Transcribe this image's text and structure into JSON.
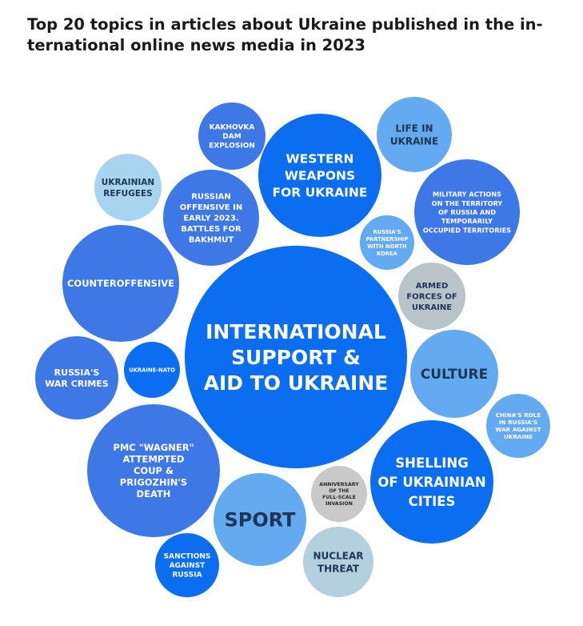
{
  "title": "Top 20 topics in articles about Ukraine published in the in­ternational online news media in 2023",
  "chart_data": {
    "type": "bubble",
    "title": "Top 20 topics in articles about Ukraine published in the international online news media in 2023",
    "colors": {
      "dark_blue": "#0b6df0",
      "medium_blue": "#3d78e6",
      "light_blue": "#64aaf0",
      "pale_blue": "#a9d4ef",
      "grey": "#b8c4c8",
      "light_grey": "#c9c9c9",
      "grey_blue": "#b4cfdd"
    },
    "bubbles": [
      {
        "label": "INTERNATIONAL SUPPORT & AID TO UKRAINE",
        "lines": [
          "INTERNATIONAL",
          "SUPPORT &",
          "AID TO UKRAINE"
        ],
        "color": "dark_blue",
        "rank": 1
      },
      {
        "label": "WESTERN WEAPONS FOR UKRAINE",
        "lines": [
          "WESTERN",
          "WEAPONS",
          "FOR UKRAINE"
        ],
        "color": "dark_blue",
        "rank": 2
      },
      {
        "label": "SHELLING OF UKRAINIAN CITIES",
        "lines": [
          "SHELLING",
          "OF UKRAINIAN",
          "CITIES"
        ],
        "color": "dark_blue",
        "rank": 3
      },
      {
        "label": "COUNTEROFFENSIVE",
        "lines": [
          "COUNTEROFFENSIVE"
        ],
        "color": "medium_blue",
        "rank": 4
      },
      {
        "label": "PMC \"WAGNER\" ATTEMPTED COUP & PRIGOZHIN'S DEATH",
        "lines": [
          "PMC \"WAGNER\"",
          "ATTEMPTED",
          "COUP &",
          "PRIGOZHIN'S",
          "DEATH"
        ],
        "color": "medium_blue",
        "rank": 5
      },
      {
        "label": "SPORT",
        "lines": [
          "SPORT"
        ],
        "color": "light_blue",
        "rank": 6
      },
      {
        "label": "MILITARY ACTIONS ON THE TERRITORY OF RUSSIA AND TEMPORARILY OCCUPIED TERRITORIES",
        "lines": [
          "MILITARY ACTIONS",
          "ON THE TERRITORY",
          "OF RUSSIA AND",
          "TEMPORARILY",
          "OCCUPIED TERRITORIES"
        ],
        "color": "medium_blue",
        "rank": 7
      },
      {
        "label": "CULTURE",
        "lines": [
          "CULTURE"
        ],
        "color": "light_blue",
        "rank": 8
      },
      {
        "label": "RUSSIAN OFFENSIVE IN EARLY 2023. BATTLES FOR BAKHMUT",
        "lines": [
          "RUSSIAN",
          "OFFENSIVE IN",
          "EARLY 2023.",
          "BATTLES FOR",
          "BAKHMUT"
        ],
        "color": "medium_blue",
        "rank": 9
      },
      {
        "label": "RUSSIA'S WAR CRIMES",
        "lines": [
          "RUSSIA'S",
          "WAR CRIMES"
        ],
        "color": "medium_blue",
        "rank": 10
      },
      {
        "label": "LIFE IN UKRAINE",
        "lines": [
          "LIFE IN",
          "UKRAINE"
        ],
        "color": "light_blue",
        "rank": 11
      },
      {
        "label": "NUCLEAR THREAT",
        "lines": [
          "NUCLEAR",
          "THREAT"
        ],
        "color": "grey_blue",
        "rank": 12
      },
      {
        "label": "UKRAINIAN REFUGEES",
        "lines": [
          "UKRAINIAN",
          "REFUGEES"
        ],
        "color": "pale_blue",
        "rank": 13
      },
      {
        "label": "KAKHOVKA DAM EXPLOSION",
        "lines": [
          "KAKHOVKA",
          "DAM",
          "EXPLOSION"
        ],
        "color": "medium_blue",
        "rank": 14
      },
      {
        "label": "ARMED FORCES OF UKRAINE",
        "lines": [
          "ARMED",
          "FORCES OF",
          "UKRAINE"
        ],
        "color": "grey",
        "rank": 15
      },
      {
        "label": "SANCTIONS AGAINST RUSSIA",
        "lines": [
          "SANCTIONS",
          "AGAINST",
          "RUSSIA"
        ],
        "color": "dark_blue",
        "rank": 16
      },
      {
        "label": "CHINA'S ROLE IN RUSSIA'S WAR AGAINST UKRAINE",
        "lines": [
          "CHINA'S ROLE",
          "IN RUSSIA'S",
          "WAR AGAINST",
          "UKRAINE"
        ],
        "color": "light_blue",
        "rank": 17
      },
      {
        "label": "UKRAINE-NATO",
        "lines": [
          "UKRAINE-NATO"
        ],
        "color": "dark_blue",
        "rank": 18
      },
      {
        "label": "RUSSIA'S PARTNERSHIP WITH NORTH KOREA",
        "lines": [
          "RUSSIA'S",
          "PARTNERSHIP",
          "WITH NORTH",
          "KOREA"
        ],
        "color": "light_blue",
        "rank": 19
      },
      {
        "label": "ANNIVERSARY OF THE FULL-SCALE INVASION",
        "lines": [
          "ANNIVERSARY",
          "OF THE",
          "FULL-SCALE",
          "INVASION"
        ],
        "color": "light_grey",
        "rank": 20
      }
    ]
  }
}
